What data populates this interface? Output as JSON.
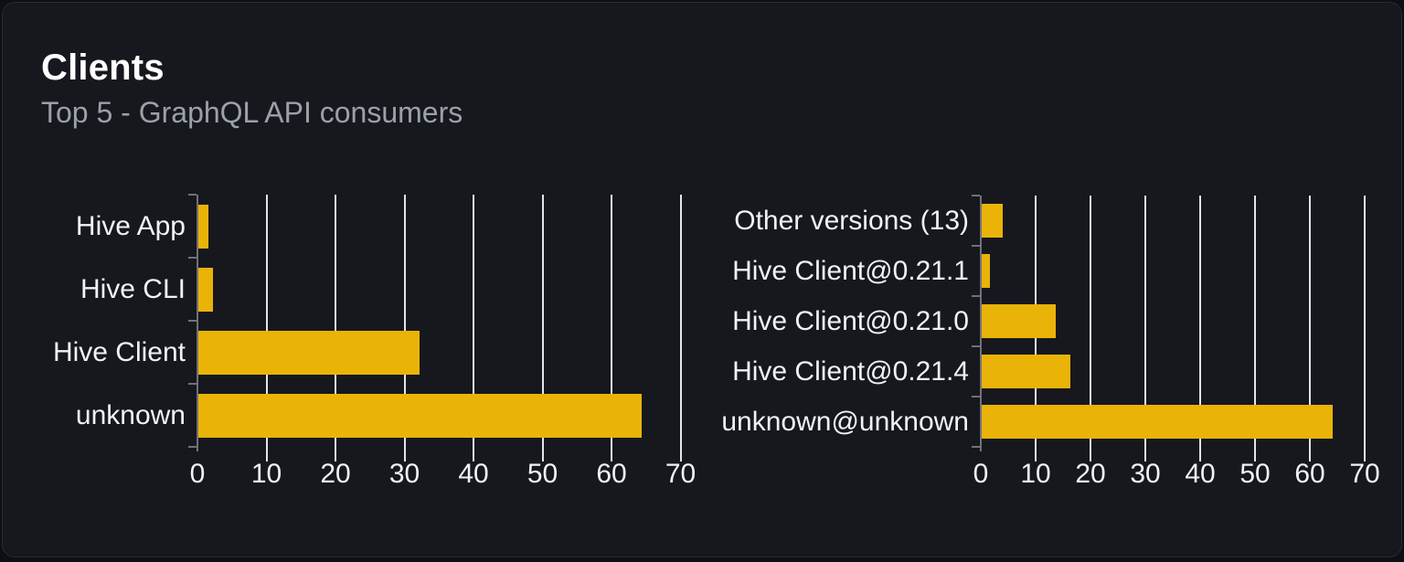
{
  "card": {
    "title": "Clients",
    "subtitle": "Top 5 - GraphQL API consumers"
  },
  "colors": {
    "page_bg": "#0d0f13",
    "card_bg": "#16181e",
    "card_border": "#272b33",
    "bar": "#eab308",
    "gridline": "#e2e5ea",
    "axis": "#71717a",
    "title_text": "#ffffff",
    "subtitle_text": "#9aa1ab",
    "label_text": "#f1f2f4"
  },
  "chart_data": [
    {
      "type": "bar",
      "orientation": "horizontal",
      "name": "clients",
      "categories": [
        "Hive App",
        "Hive CLI",
        "Hive Client",
        "unknown"
      ],
      "values": [
        1.4,
        2.1,
        32,
        64.3
      ],
      "xticks": [
        0,
        10,
        20,
        30,
        40,
        50,
        60,
        70
      ],
      "xlim": [
        0,
        70
      ],
      "grid": true,
      "legend": false,
      "xlabel": "",
      "ylabel": ""
    },
    {
      "type": "bar",
      "orientation": "horizontal",
      "name": "client-versions",
      "categories": [
        "Other versions (13)",
        "Hive Client@0.21.1",
        "Hive Client@0.21.0",
        "Hive Client@0.21.4",
        "unknown@unknown"
      ],
      "values": [
        3.9,
        1.5,
        13.5,
        16.1,
        64
      ],
      "xticks": [
        0,
        10,
        20,
        30,
        40,
        50,
        60,
        70
      ],
      "xlim": [
        0,
        70
      ],
      "grid": true,
      "legend": false,
      "xlabel": "",
      "ylabel": ""
    }
  ]
}
